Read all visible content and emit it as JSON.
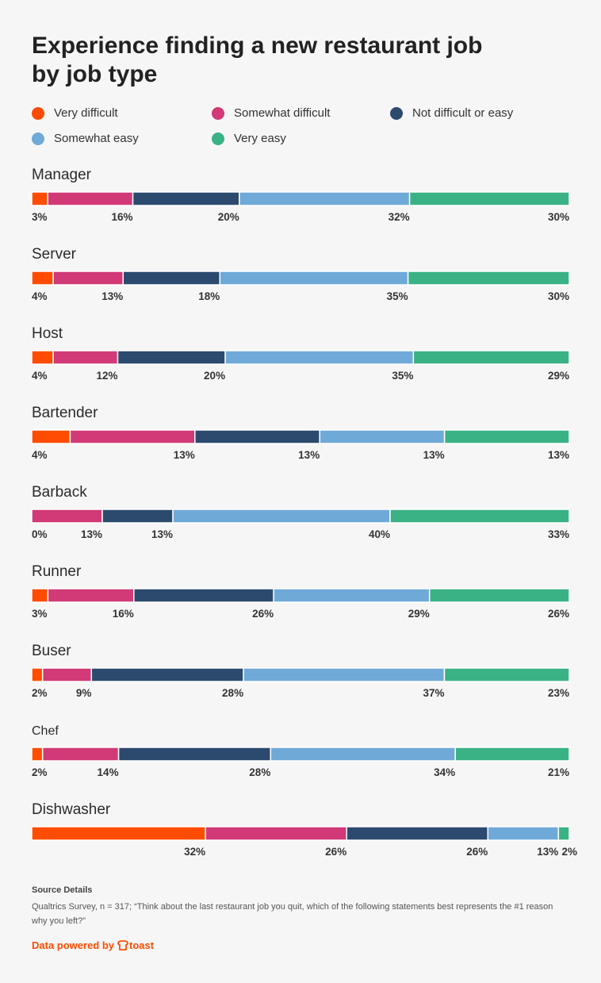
{
  "chart_data": {
    "type": "bar",
    "orientation": "horizontal",
    "stacked": true,
    "title": "Experience finding a new restaurant job by job type",
    "categories": [
      "Manager",
      "Server",
      "Host",
      "Bartender",
      "Barback",
      "Runner",
      "Buser",
      "Chef",
      "Dishwasher"
    ],
    "series": [
      {
        "name": "Very difficult",
        "color": "#ff4c00",
        "values": [
          3,
          4,
          4,
          4,
          0,
          3,
          2,
          2,
          32
        ]
      },
      {
        "name": "Somewhat difficult",
        "color": "#d13a76",
        "values": [
          16,
          13,
          12,
          13,
          13,
          16,
          9,
          14,
          26
        ]
      },
      {
        "name": "Not difficult or easy",
        "color": "#2c4a6e",
        "values": [
          20,
          18,
          20,
          13,
          13,
          26,
          28,
          28,
          26
        ]
      },
      {
        "name": "Somewhat easy",
        "color": "#6fa9d8",
        "values": [
          32,
          35,
          35,
          13,
          40,
          29,
          37,
          34,
          13
        ]
      },
      {
        "name": "Very easy",
        "color": "#3ab286",
        "values": [
          30,
          30,
          29,
          13,
          33,
          26,
          23,
          21,
          2
        ]
      }
    ],
    "legend_position": "top",
    "grid": false
  },
  "source": {
    "heading": "Source Details",
    "text": "Qualtrics Survey, n = 317; “Think about the last restaurant job you quit, which of the following statements best represents the #1 reason why you left?”"
  },
  "footer": {
    "powered_label": "Data powered by",
    "brand": "toast"
  }
}
